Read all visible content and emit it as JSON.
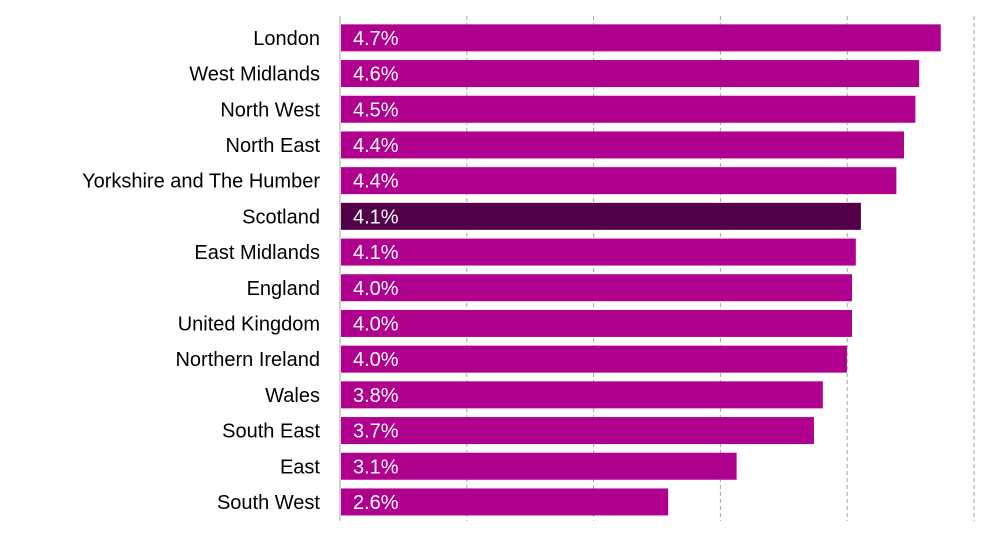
{
  "chart_data": {
    "type": "bar",
    "orientation": "horizontal",
    "title": "",
    "xlabel": "",
    "ylabel": "",
    "grid": true,
    "xlim": [
      0,
      5
    ],
    "categories": [
      "London",
      "West Midlands",
      "North West",
      "North East",
      "Yorkshire and The Humber",
      "Scotland",
      "East Midlands",
      "England",
      "United Kingdom",
      "Northern Ireland",
      "Wales",
      "South East",
      "East",
      "South West"
    ],
    "values": [
      4.73,
      4.56,
      4.53,
      4.44,
      4.38,
      4.1,
      4.06,
      4.03,
      4.03,
      3.99,
      3.8,
      3.73,
      3.12,
      2.58
    ],
    "value_labels": [
      "4.7%",
      "4.6%",
      "4.5%",
      "4.4%",
      "4.4%",
      "4.1%",
      "4.1%",
      "4.0%",
      "4.0%",
      "4.0%",
      "3.8%",
      "3.7%",
      "3.1%",
      "2.6%"
    ],
    "highlight_category": "Scotland",
    "colors": {
      "bar": "#b0008e",
      "highlight": "#52004a"
    }
  }
}
